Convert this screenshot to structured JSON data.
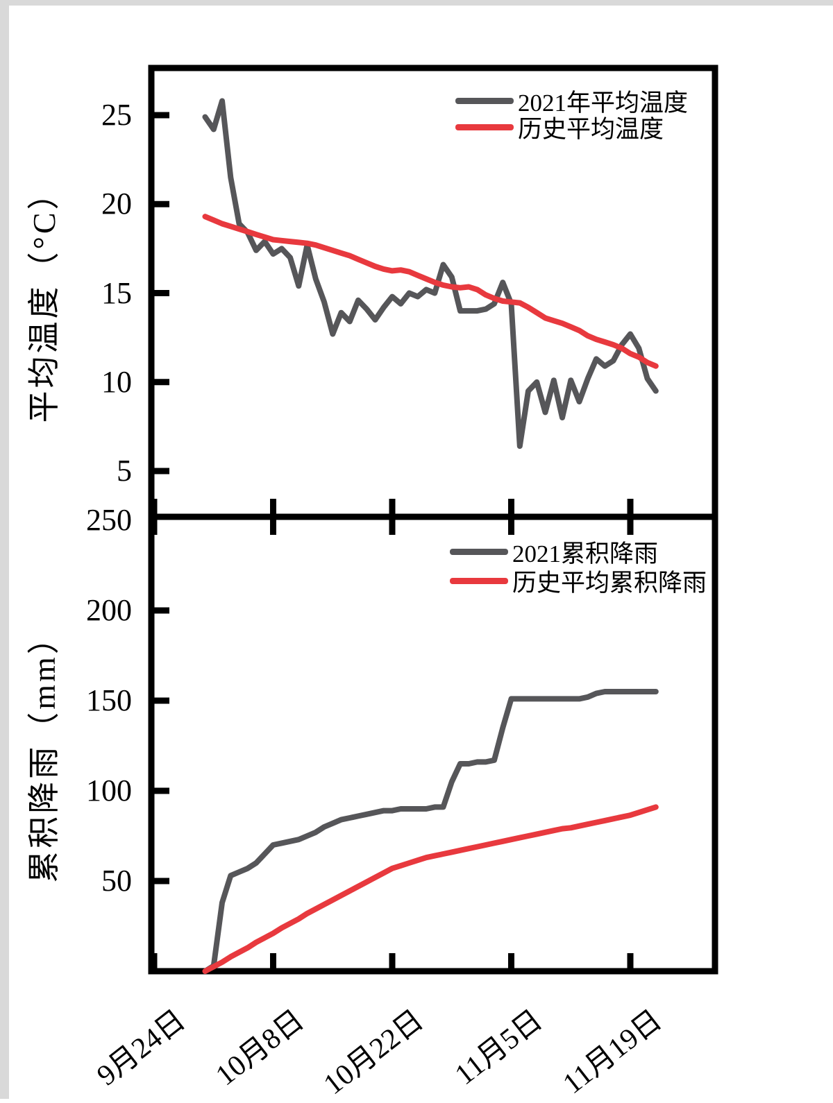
{
  "page": {
    "background": "#ffffff",
    "edge_color": "#d9d9d9"
  },
  "colors": {
    "gray": "#565659",
    "red": "#e8393e",
    "axis": "#000000"
  },
  "x_axis": {
    "tick_labels": [
      "9月24日",
      "10月8日",
      "10月22日",
      "11月5日",
      "11月19日"
    ],
    "tick_days": [
      0,
      14,
      28,
      42,
      56
    ]
  },
  "chart_data": [
    {
      "type": "line",
      "title": "",
      "ylabel": "平均温度（°C）",
      "ylim": [
        2.5,
        27.5
      ],
      "yticks": [
        25,
        20,
        15,
        10,
        5
      ],
      "xlim_days": [
        0,
        66
      ],
      "grid": false,
      "legend_position": "top-right",
      "x_tick_labels": [
        "9月24日",
        "10月8日",
        "10月22日",
        "11月5日",
        "11月19日"
      ],
      "x_tick_days": [
        0,
        14,
        28,
        42,
        56
      ],
      "series": [
        {
          "name": "2021年平均温度",
          "color_key": "gray",
          "start_day": 6,
          "values": [
            24.9,
            24.2,
            25.8,
            21.5,
            18.9,
            18.4,
            17.4,
            17.9,
            17.2,
            17.5,
            17.0,
            15.4,
            17.7,
            15.8,
            14.5,
            12.7,
            13.9,
            13.4,
            14.6,
            14.1,
            13.5,
            14.2,
            14.8,
            14.4,
            15.0,
            14.8,
            15.2,
            15.0,
            16.6,
            15.9,
            14.0,
            14.0,
            14.0,
            14.1,
            14.4,
            15.6,
            14.4,
            6.4,
            9.5,
            10.0,
            8.3,
            10.1,
            8.0,
            10.1,
            8.9,
            10.2,
            11.3,
            10.9,
            11.2,
            12.1,
            12.7,
            11.9,
            10.2,
            9.5
          ]
        },
        {
          "name": "历史平均温度",
          "color_key": "red",
          "start_day": 6,
          "values": [
            19.3,
            19.1,
            18.9,
            18.75,
            18.6,
            18.45,
            18.3,
            18.15,
            18.0,
            17.95,
            17.9,
            17.85,
            17.8,
            17.7,
            17.55,
            17.4,
            17.25,
            17.1,
            16.9,
            16.7,
            16.5,
            16.35,
            16.25,
            16.3,
            16.2,
            16.0,
            15.8,
            15.6,
            15.45,
            15.35,
            15.3,
            15.35,
            15.2,
            14.9,
            14.7,
            14.55,
            14.5,
            14.45,
            14.2,
            13.9,
            13.6,
            13.45,
            13.3,
            13.1,
            12.9,
            12.6,
            12.4,
            12.25,
            12.1,
            11.9,
            11.6,
            11.4,
            11.1,
            10.9
          ]
        }
      ]
    },
    {
      "type": "line",
      "title": "",
      "ylabel": "累积降雨（mm）",
      "ylim": [
        0,
        252
      ],
      "yticks": [
        250,
        200,
        150,
        100,
        50
      ],
      "xlim_days": [
        0,
        66
      ],
      "grid": false,
      "legend_position": "top-right",
      "x_tick_labels": [
        "9月24日",
        "10月8日",
        "10月22日",
        "11月5日",
        "11月19日"
      ],
      "x_tick_days": [
        0,
        14,
        28,
        42,
        56
      ],
      "series": [
        {
          "name": "2021累积降雨",
          "color_key": "gray",
          "start_day": 6,
          "values": [
            0,
            3,
            38,
            53,
            55,
            57,
            60,
            65,
            70,
            71,
            72,
            73,
            75,
            77,
            80,
            82,
            84,
            85,
            86,
            87,
            88,
            89,
            89,
            90,
            90,
            90,
            90,
            91,
            91,
            105,
            115,
            115,
            116,
            116,
            117,
            135,
            151,
            151,
            151,
            151,
            151,
            151,
            151,
            151,
            151,
            152,
            154,
            155,
            155,
            155,
            155,
            155,
            155,
            155
          ]
        },
        {
          "name": "历史平均累积降雨",
          "color_key": "red",
          "start_day": 6,
          "values": [
            0,
            2.5,
            5,
            8,
            10.5,
            13,
            16,
            18.5,
            21,
            24,
            26.5,
            29,
            32,
            34.5,
            37,
            39.5,
            42,
            44.5,
            47,
            49.5,
            52,
            54.5,
            57,
            58.5,
            60,
            61.5,
            63,
            64,
            65,
            66,
            67,
            68,
            69,
            70,
            71,
            72,
            73,
            74,
            75,
            76,
            77,
            78,
            79,
            79.5,
            80.5,
            81.5,
            82.5,
            83.5,
            84.5,
            85.5,
            86.5,
            88,
            89.5,
            91
          ]
        }
      ]
    }
  ]
}
